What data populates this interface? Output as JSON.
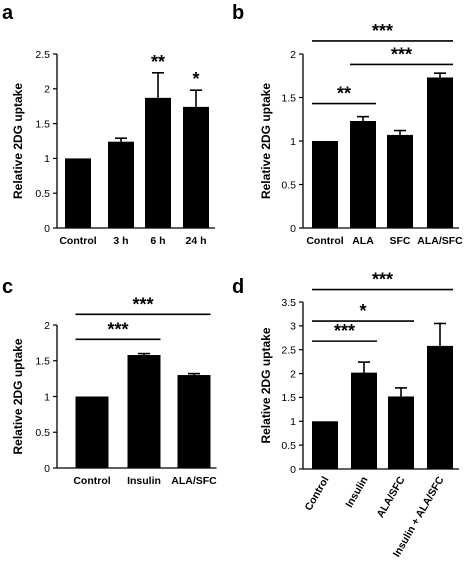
{
  "chart_data": [
    {
      "panel": "a",
      "type": "bar",
      "ylabel": "Relative 2DG uptake",
      "ylim": [
        0,
        2.5
      ],
      "yticks": [
        "0",
        "0.5",
        "1",
        "1.5",
        "2",
        "2.5"
      ],
      "yticks_values": [
        0,
        0.5,
        1,
        1.5,
        2,
        2.5
      ],
      "categories": [
        "Control",
        "3 h",
        "6 h",
        "24 h"
      ],
      "values": [
        1.0,
        1.24,
        1.87,
        1.74
      ],
      "errors": [
        0.0,
        0.05,
        0.36,
        0.24
      ],
      "bar_labels": [
        "",
        "",
        "**",
        "*"
      ],
      "brackets": []
    },
    {
      "panel": "b",
      "type": "bar",
      "ylabel": "Relative 2DG uptake",
      "ylim": [
        0,
        2
      ],
      "yticks": [
        "0",
        "0.5",
        "1",
        "1.5",
        "2"
      ],
      "yticks_values": [
        0,
        0.5,
        1,
        1.5,
        2
      ],
      "categories": [
        "Control",
        "ALA",
        "SFC",
        "ALA/SFC"
      ],
      "values": [
        1.0,
        1.23,
        1.07,
        1.73
      ],
      "errors": [
        0.0,
        0.05,
        0.05,
        0.05
      ],
      "bar_labels": [
        "",
        "",
        "",
        ""
      ],
      "brackets": [
        {
          "from": 0,
          "to": 1,
          "y": 1.43,
          "label": "**"
        },
        {
          "from": 1,
          "to": 3,
          "y": 1.88,
          "label": "***"
        },
        {
          "from": 0,
          "to": 3,
          "y": 2.15,
          "label": "***"
        }
      ]
    },
    {
      "panel": "c",
      "type": "bar",
      "ylabel": "Relative 2DG uptake",
      "ylim": [
        0,
        2
      ],
      "yticks": [
        "0",
        "0.5",
        "1",
        "1.5",
        "2"
      ],
      "yticks_values": [
        0,
        0.5,
        1,
        1.5,
        2
      ],
      "categories": [
        "Control",
        "Insulin",
        "ALA/SFC"
      ],
      "values": [
        1.0,
        1.58,
        1.3
      ],
      "errors": [
        0.0,
        0.02,
        0.02
      ],
      "bar_labels": [
        "",
        "",
        ""
      ],
      "brackets": [
        {
          "from": 0,
          "to": 1,
          "y": 1.8,
          "label": "***"
        },
        {
          "from": 0,
          "to": 2,
          "y": 2.15,
          "label": "***"
        }
      ]
    },
    {
      "panel": "d",
      "type": "bar",
      "ylabel": "Relative 2DG uptake",
      "ylim": [
        0,
        3.5
      ],
      "yticks": [
        "0",
        "0.5",
        "1",
        "1.5",
        "2",
        "2.5",
        "3",
        "3.5"
      ],
      "yticks_values": [
        0,
        0.5,
        1,
        1.5,
        2,
        2.5,
        3,
        3.5
      ],
      "categories": [
        "Control",
        "Insulin",
        "ALA/SFC",
        "Insulin + ALA/SFC"
      ],
      "values": [
        1.0,
        2.02,
        1.52,
        2.58
      ],
      "errors": [
        0.0,
        0.22,
        0.18,
        0.47
      ],
      "bar_labels": [
        "",
        "",
        "",
        ""
      ],
      "brackets": [
        {
          "from": 0,
          "to": 1,
          "y": 2.68,
          "label": "***"
        },
        {
          "from": 0,
          "to": 2,
          "y": 3.1,
          "label": "*"
        },
        {
          "from": 0,
          "to": 3,
          "y": 3.76,
          "label": "***"
        }
      ]
    }
  ]
}
